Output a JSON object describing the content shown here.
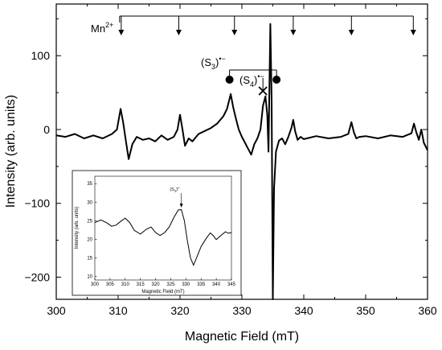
{
  "chart_data": [
    {
      "type": "line",
      "title": "",
      "xlabel": "Magnetic Field (mT)",
      "ylabel": "Intensity (arb. units)",
      "xlim": [
        300,
        360
      ],
      "ylim": [
        -230,
        170
      ],
      "xticks": [
        300,
        310,
        320,
        330,
        340,
        350,
        360
      ],
      "yticks": [
        -200,
        -100,
        0,
        100
      ],
      "grid": false,
      "series": [
        {
          "x": [
            300,
            301.5,
            303,
            304.5,
            306,
            307.5,
            309,
            309.8,
            310.4,
            310.8,
            311.3,
            311.7,
            312.3,
            313,
            314,
            315,
            316,
            317,
            318,
            319,
            319.6,
            320,
            320.4,
            320.8,
            321.4,
            322,
            323,
            324,
            325,
            326,
            327,
            327.6,
            328.2,
            328.6,
            329,
            329.5,
            330,
            330.5,
            331,
            331.5,
            332,
            332.5,
            333,
            333.4,
            333.8,
            334.1,
            334.3,
            334.6,
            334.8,
            335.0,
            335.2,
            335.5,
            336,
            336.5,
            337,
            337.5,
            338,
            338.3,
            338.6,
            339,
            339.5,
            340,
            342,
            344,
            346,
            347.2,
            347.7,
            348.1,
            348.5,
            349,
            350,
            352,
            354,
            356,
            357.4,
            357.8,
            358.2,
            358.6,
            359,
            359.4,
            360
          ],
          "y": [
            -8,
            -10,
            -6,
            -12,
            -8,
            -12,
            -6,
            0,
            28,
            10,
            -18,
            -40,
            -20,
            -10,
            -14,
            -12,
            -16,
            -8,
            -14,
            -10,
            0,
            20,
            0,
            -22,
            -12,
            -16,
            -6,
            -2,
            2,
            8,
            18,
            28,
            48,
            30,
            16,
            0,
            -10,
            -18,
            -26,
            -34,
            -20,
            -12,
            0,
            32,
            45,
            20,
            -30,
            143,
            40,
            -230,
            -80,
            -30,
            -15,
            -12,
            -20,
            -10,
            2,
            13,
            -2,
            -14,
            -10,
            -13,
            -9,
            -12,
            -10,
            -6,
            10,
            -4,
            -12,
            -10,
            -9,
            -12,
            -8,
            -10,
            -5,
            8,
            -4,
            -14,
            0,
            -18,
            -28
          ]
        }
      ],
      "annotations": {
        "mn_label": "Mn",
        "mn_superscript": "2+",
        "mn_positions": [
          310.5,
          319.8,
          328.8,
          338.3,
          347.7,
          357.7
        ],
        "s3_label": "(S",
        "s3_sub": "3",
        "s3_sup": "•−",
        "s3_close": ")",
        "s3_markers": [
          328.0,
          335.6
        ],
        "s4_label": "(S",
        "s4_sub": "4",
        "s4_sup": "•−",
        "s4_close": ")",
        "s4_marker": 333.4
      }
    },
    {
      "type": "line",
      "title": "",
      "xlabel": "Magnetic Field (mT)",
      "ylabel": "Intensity (arb. units)",
      "xlim": [
        300,
        345
      ],
      "ylim": [
        9,
        37
      ],
      "xticks": [
        300,
        305,
        310,
        315,
        320,
        325,
        330,
        335,
        340,
        345
      ],
      "yticks": [
        10,
        15,
        20,
        25,
        30,
        35
      ],
      "grid": false,
      "annotation": {
        "label": "(S",
        "sub": "3",
        "sup": "•−",
        "close": ")",
        "x": 328.5
      },
      "series": [
        {
          "x": [
            300,
            302,
            304,
            305.5,
            307,
            308.5,
            310,
            311.5,
            313,
            315,
            317,
            318.5,
            320,
            321.5,
            323,
            324.5,
            326,
            327.5,
            328.5,
            329.5,
            330.5,
            331.5,
            332.5,
            333.5,
            335,
            336.5,
            338,
            339,
            340,
            341.5,
            343,
            344,
            345
          ],
          "y": [
            24.5,
            25.2,
            24.4,
            23.5,
            23.8,
            24.8,
            25.7,
            24.5,
            22.4,
            21.4,
            22.7,
            23.3,
            21.8,
            21.0,
            21.8,
            23.3,
            25.8,
            27.9,
            28.0,
            25.0,
            19.5,
            15.0,
            13.0,
            15.0,
            18.0,
            20.0,
            21.7,
            21.0,
            19.9,
            21.0,
            22.0,
            21.6,
            21.8
          ]
        }
      ]
    }
  ]
}
